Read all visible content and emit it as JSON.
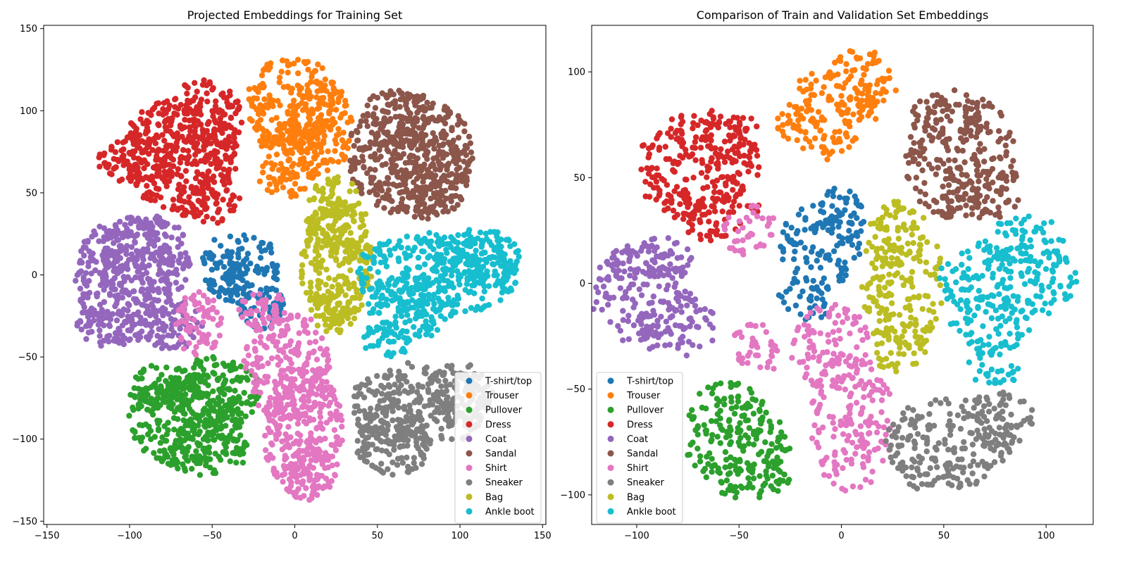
{
  "chart_data": [
    {
      "type": "scatter",
      "title": "Projected Embeddings for Training Set",
      "xlabel": "",
      "ylabel": "",
      "xlim": [
        -152,
        152
      ],
      "ylim": [
        -152,
        152
      ],
      "xticks": [
        -150,
        -100,
        -50,
        0,
        50,
        100,
        150
      ],
      "yticks": [
        -150,
        -100,
        -50,
        0,
        50,
        100,
        150
      ],
      "grid": false,
      "legend_position": "lower-right",
      "series": [
        {
          "name": "T-shirt/top",
          "color": "#1f77b4",
          "blobs": [
            [
              -33,
              5,
              24,
              22
            ],
            [
              -20,
              -20,
              14,
              14
            ],
            [
              -35,
              -5,
              10,
              14
            ]
          ]
        },
        {
          "name": "Trouser",
          "color": "#ff7f0e",
          "blobs": [
            [
              -1,
              105,
              28,
              28
            ],
            [
              -5,
              70,
              20,
              23
            ],
            [
              15,
              90,
              20,
              30
            ]
          ]
        },
        {
          "name": "Pullover",
          "color": "#2ca02c",
          "blobs": [
            [
              -65,
              -88,
              36,
              28
            ],
            [
              -50,
              -72,
              30,
              22
            ],
            [
              -80,
              -70,
              20,
              16
            ],
            [
              -55,
              -108,
              28,
              14
            ]
          ]
        },
        {
          "name": "Dress",
          "color": "#d62728",
          "blobs": [
            [
              -70,
              73,
              36,
              34
            ],
            [
              -55,
              95,
              24,
              24
            ],
            [
              -95,
              70,
              24,
              16
            ],
            [
              -52,
              45,
              20,
              14
            ]
          ]
        },
        {
          "name": "Coat",
          "color": "#9467bd",
          "blobs": [
            [
              -103,
              -2,
              30,
              38
            ],
            [
              -90,
              10,
              28,
              28
            ],
            [
              -75,
              -30,
              20,
              16
            ],
            [
              -110,
              -30,
              22,
              14
            ]
          ]
        },
        {
          "name": "Sandal",
          "color": "#8c564b",
          "blobs": [
            [
              70,
              73,
              38,
              38
            ],
            [
              80,
              60,
              26,
              26
            ],
            [
              60,
              95,
              22,
              18
            ]
          ]
        },
        {
          "name": "Shirt",
          "color": "#e377c2",
          "blobs": [
            [
              5,
              -95,
              24,
              42
            ],
            [
              -5,
              -55,
              26,
              34
            ],
            [
              10,
              -118,
              18,
              20
            ],
            [
              -58,
              -30,
              14,
              20
            ],
            [
              -20,
              -20,
              14,
              12
            ]
          ]
        },
        {
          "name": "Sneaker",
          "color": "#7f7f7f",
          "blobs": [
            [
              75,
              -80,
              42,
              27
            ],
            [
              60,
              -100,
              24,
              22
            ],
            [
              100,
              -72,
              20,
              18
            ]
          ]
        },
        {
          "name": "Bag",
          "color": "#bcbd22",
          "blobs": [
            [
              25,
              8,
              22,
              38
            ],
            [
              25,
              35,
              18,
              26
            ],
            [
              25,
              -18,
              16,
              18
            ]
          ]
        },
        {
          "name": "Ankle boot",
          "color": "#17becf",
          "blobs": [
            [
              85,
              0,
              50,
              26
            ],
            [
              70,
              -20,
              26,
              20
            ],
            [
              110,
              10,
              28,
              18
            ],
            [
              55,
              -40,
              16,
              10
            ]
          ]
        }
      ]
    },
    {
      "type": "scatter",
      "title": "Comparison of Train and Validation Set Embeddings",
      "xlabel": "",
      "ylabel": "",
      "xlim": [
        -122,
        123
      ],
      "ylim": [
        -114,
        122
      ],
      "xticks": [
        -100,
        -50,
        0,
        50,
        100
      ],
      "yticks": [
        -100,
        -50,
        0,
        50,
        100
      ],
      "grid": false,
      "legend_position": "lower-left",
      "series": [
        {
          "name": "T-shirt/top",
          "color": "#1f77b4",
          "blobs": [
            [
              -10,
              18,
              20,
              22
            ],
            [
              -18,
              -8,
              14,
              10
            ],
            [
              0,
              32,
              12,
              14
            ]
          ]
        },
        {
          "name": "Trouser",
          "color": "#ff7f0e",
          "blobs": [
            [
              -5,
              80,
              22,
              22
            ],
            [
              10,
              95,
              18,
              16
            ],
            [
              -20,
              75,
              12,
              10
            ]
          ]
        },
        {
          "name": "Pullover",
          "color": "#2ca02c",
          "blobs": [
            [
              -50,
              -78,
              26,
              20
            ],
            [
              -55,
              -60,
              20,
              14
            ],
            [
              -45,
              -92,
              20,
              10
            ]
          ]
        },
        {
          "name": "Dress",
          "color": "#d62728",
          "blobs": [
            [
              -70,
              55,
              30,
              28
            ],
            [
              -60,
              35,
              20,
              16
            ],
            [
              -60,
              70,
              20,
              14
            ]
          ]
        },
        {
          "name": "Coat",
          "color": "#9467bd",
          "blobs": [
            [
              -100,
              -5,
              25,
              23
            ],
            [
              -80,
              -20,
              20,
              16
            ],
            [
              -90,
              10,
              18,
              12
            ]
          ]
        },
        {
          "name": "Sandal",
          "color": "#8c564b",
          "blobs": [
            [
              58,
              60,
              28,
              30
            ],
            [
              68,
              45,
              20,
              16
            ],
            [
              50,
              80,
              18,
              12
            ]
          ]
        },
        {
          "name": "Shirt",
          "color": "#e377c2",
          "blobs": [
            [
              5,
              -65,
              20,
              35
            ],
            [
              -5,
              -30,
              20,
              20
            ],
            [
              -40,
              -30,
              14,
              12
            ],
            [
              -45,
              25,
              14,
              12
            ]
          ]
        },
        {
          "name": "Sneaker",
          "color": "#7f7f7f",
          "blobs": [
            [
              53,
              -75,
              32,
              22
            ],
            [
              75,
              -65,
              20,
              14
            ],
            [
              40,
              -90,
              14,
              8
            ]
          ]
        },
        {
          "name": "Bag",
          "color": "#bcbd22",
          "blobs": [
            [
              30,
              0,
              20,
              36
            ],
            [
              25,
              25,
              12,
              14
            ],
            [
              28,
              -30,
              14,
              12
            ]
          ]
        },
        {
          "name": "Ankle boot",
          "color": "#17becf",
          "blobs": [
            [
              82,
              2,
              35,
              20
            ],
            [
              72,
              -20,
              20,
              14
            ],
            [
              90,
              20,
              20,
              12
            ],
            [
              75,
              -40,
              14,
              8
            ]
          ]
        }
      ]
    }
  ]
}
